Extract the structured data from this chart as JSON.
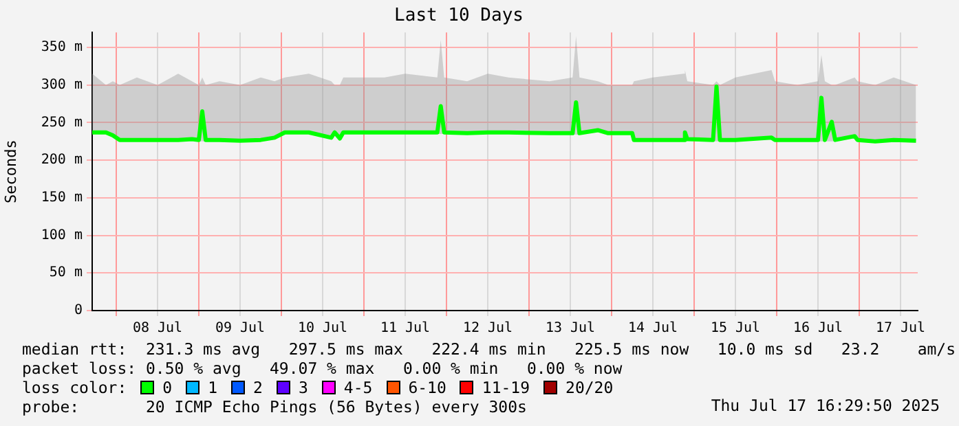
{
  "chart_data": {
    "type": "line",
    "title": "Last 10 Days",
    "ylabel": "Seconds",
    "x": [
      "2025-07-07T17:00",
      "2025-07-07T21:00",
      "2025-07-07T23:00",
      "2025-07-08T01:00",
      "2025-07-08T06:00",
      "2025-07-08T12:00",
      "2025-07-08T18:00",
      "2025-07-08T22:00",
      "2025-07-09T00:00",
      "2025-07-09T01:00",
      "2025-07-09T02:00",
      "2025-07-09T06:00",
      "2025-07-09T12:00",
      "2025-07-09T18:00",
      "2025-07-09T22:00",
      "2025-07-10T01:00",
      "2025-07-10T08:00",
      "2025-07-10T14:30",
      "2025-07-10T15:30",
      "2025-07-10T17:00",
      "2025-07-10T18:00",
      "2025-07-11T06:00",
      "2025-07-11T12:00",
      "2025-07-11T21:20",
      "2025-07-11T22:20",
      "2025-07-11T23:20",
      "2025-07-12T06:00",
      "2025-07-12T12:00",
      "2025-07-12T18:00",
      "2025-07-13T06:00",
      "2025-07-13T12:40",
      "2025-07-13T13:40",
      "2025-07-13T14:40",
      "2025-07-13T20:00",
      "2025-07-13T23:00",
      "2025-07-14T06:00",
      "2025-07-14T06:30",
      "2025-07-14T12:00",
      "2025-07-14T21:00",
      "2025-07-14T21:20",
      "2025-07-14T22:00",
      "2025-07-15T05:30",
      "2025-07-15T06:30",
      "2025-07-15T07:30",
      "2025-07-15T12:00",
      "2025-07-15T22:30",
      "2025-07-15T23:30",
      "2025-07-16T06:00",
      "2025-07-16T12:00",
      "2025-07-16T13:00",
      "2025-07-16T14:00",
      "2025-07-16T16:00",
      "2025-07-16T17:00",
      "2025-07-16T22:40",
      "2025-07-16T23:30",
      "2025-07-17T04:40",
      "2025-07-17T10:00",
      "2025-07-17T16:30"
    ],
    "series": [
      {
        "color": "#00ff00",
        "values": [
          237,
          237,
          233,
          227,
          227,
          227,
          227,
          228,
          227,
          265,
          227,
          227,
          226,
          227,
          230,
          237,
          237,
          230,
          237,
          229,
          237,
          237,
          237,
          237,
          272,
          237,
          236,
          237,
          237,
          236,
          236,
          277,
          236,
          240,
          236,
          236,
          227,
          227,
          227,
          237,
          228,
          227,
          298,
          227,
          227,
          230,
          227,
          227,
          227,
          283,
          227,
          251,
          227,
          232,
          227,
          225,
          227,
          226
        ],
        "lower": [
          235,
          235,
          231,
          225,
          225,
          225,
          225,
          226,
          225,
          225,
          225,
          225,
          224,
          225,
          228,
          235,
          235,
          228,
          235,
          227,
          235,
          235,
          235,
          235,
          235,
          235,
          234,
          235,
          235,
          234,
          234,
          234,
          234,
          238,
          234,
          234,
          225,
          225,
          225,
          225,
          226,
          225,
          225,
          225,
          225,
          228,
          225,
          225,
          225,
          225,
          225,
          225,
          225,
          230,
          225,
          223,
          225,
          223
        ],
        "upper": [
          315,
          300,
          305,
          300,
          310,
          300,
          315,
          305,
          300,
          310,
          300,
          305,
          300,
          310,
          305,
          310,
          315,
          305,
          300,
          300,
          310,
          310,
          315,
          310,
          360,
          310,
          305,
          315,
          310,
          305,
          310,
          365,
          310,
          305,
          300,
          300,
          305,
          310,
          315,
          320,
          305,
          300,
          305,
          300,
          310,
          320,
          305,
          300,
          305,
          340,
          305,
          300,
          300,
          310,
          305,
          300,
          310,
          300
        ]
      }
    ],
    "xlim": [
      "2025-07-07T17:00",
      "2025-07-17T17:00"
    ],
    "xticks": [
      {
        "value": "2025-07-08T00:00",
        "label": null
      },
      {
        "value": "2025-07-08T12:00",
        "label": "08 Jul"
      },
      {
        "value": "2025-07-09T00:00",
        "label": null
      },
      {
        "value": "2025-07-09T12:00",
        "label": "09 Jul"
      },
      {
        "value": "2025-07-10T00:00",
        "label": null
      },
      {
        "value": "2025-07-10T12:00",
        "label": "10 Jul"
      },
      {
        "value": "2025-07-11T00:00",
        "label": null
      },
      {
        "value": "2025-07-11T12:00",
        "label": "11 Jul"
      },
      {
        "value": "2025-07-12T00:00",
        "label": null
      },
      {
        "value": "2025-07-12T12:00",
        "label": "12 Jul"
      },
      {
        "value": "2025-07-13T00:00",
        "label": null
      },
      {
        "value": "2025-07-13T12:00",
        "label": "13 Jul"
      },
      {
        "value": "2025-07-14T00:00",
        "label": null
      },
      {
        "value": "2025-07-14T12:00",
        "label": "14 Jul"
      },
      {
        "value": "2025-07-15T00:00",
        "label": null
      },
      {
        "value": "2025-07-15T12:00",
        "label": "15 Jul"
      },
      {
        "value": "2025-07-16T00:00",
        "label": null
      },
      {
        "value": "2025-07-16T12:00",
        "label": "16 Jul"
      },
      {
        "value": "2025-07-17T00:00",
        "label": null
      },
      {
        "value": "2025-07-17T12:00",
        "label": "17 Jul"
      }
    ],
    "ylim": [
      0,
      370
    ],
    "yticks": [
      0,
      {
        "value": 50,
        "label": "50 m"
      },
      {
        "value": 100,
        "label": "100 m"
      },
      {
        "value": 150,
        "label": "150 m"
      },
      {
        "value": 200,
        "label": "200 m"
      },
      {
        "value": 250,
        "label": "250 m"
      },
      {
        "value": 300,
        "label": "300 m"
      },
      {
        "value": 350,
        "label": "350 m"
      }
    ],
    "grid": true,
    "legend": false,
    "marker": "none",
    "line_style": "solid",
    "annotations": [
      "median rtt:  231.3 ms avg   297.5 ms max   222.4 ms min   225.5 ms now   10.0 ms sd   23.2    am/s",
      "packet loss: 0.50 % avg   49.07 % max   0.00 % min   0.00 % now",
      "loss color:",
      "0",
      "1",
      "2",
      "3",
      "4-5",
      "6-10",
      "11-19",
      "20/20",
      "probe:       20 ICMP Echo Pings (56 Bytes) every 300s",
      "Thu Jul 17 16:29:50 2025"
    ]
  }
}
